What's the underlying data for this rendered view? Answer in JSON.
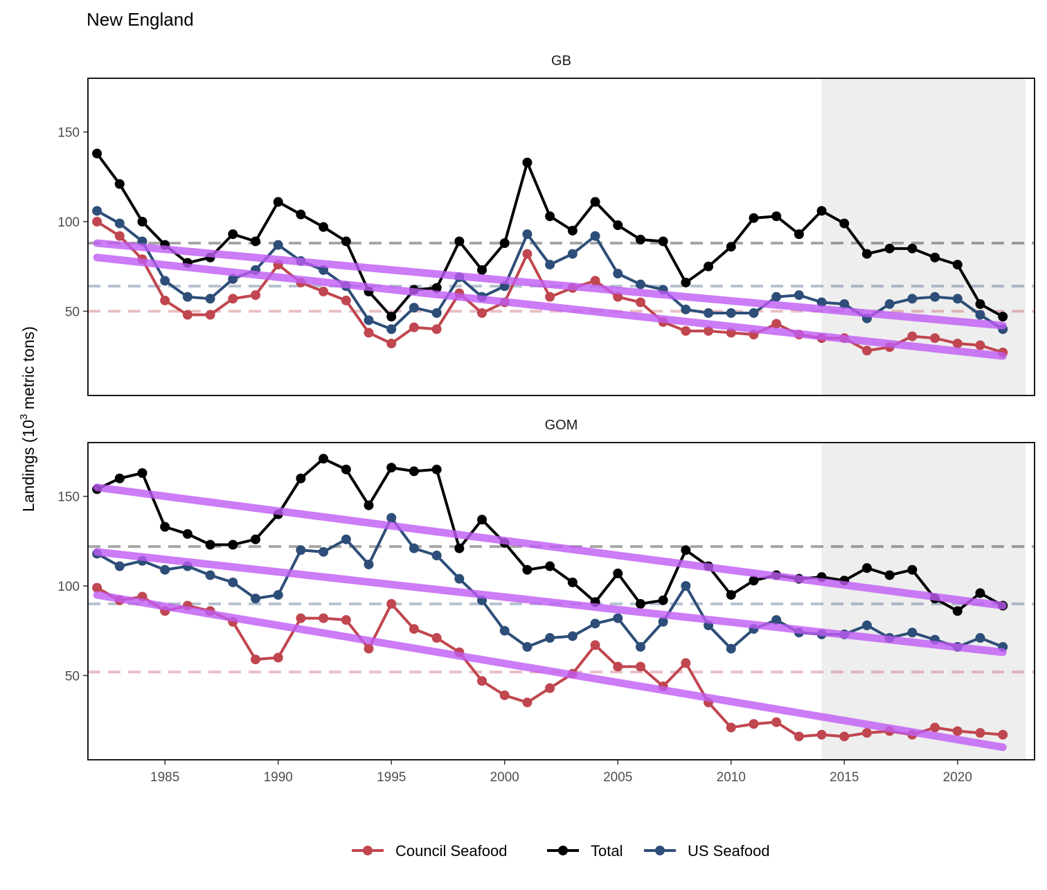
{
  "chart_data": {
    "type": "line",
    "title": "New England",
    "ylabel": "Landings (10³ metric tons)",
    "ylabel_parts": {
      "base": "Landings (10",
      "sup": "3",
      "rest": " metric tons)"
    },
    "xlim": [
      1981.6,
      2023.4
    ],
    "ylim": [
      3,
      180
    ],
    "x_ticks": [
      1985,
      1990,
      1995,
      2000,
      2005,
      2010,
      2015,
      2020
    ],
    "y_ticks": [
      50,
      100,
      150
    ],
    "shaded_period": [
      2014,
      2023
    ],
    "colors": {
      "Council Seafood": "#c0464f",
      "Total": "#000000",
      "US Seafood": "#2d4e78",
      "trend": "#bf5bf4",
      "shade": "#eeeeee"
    },
    "legend": {
      "position": "bottom",
      "entries": [
        "Council Seafood",
        "Total",
        "US Seafood"
      ]
    },
    "years": [
      1982,
      1983,
      1984,
      1985,
      1986,
      1987,
      1988,
      1989,
      1990,
      1991,
      1992,
      1993,
      1994,
      1995,
      1996,
      1997,
      1998,
      1999,
      2000,
      2001,
      2002,
      2003,
      2004,
      2005,
      2006,
      2007,
      2008,
      2009,
      2010,
      2011,
      2012,
      2013,
      2014,
      2015,
      2016,
      2017,
      2018,
      2019,
      2020,
      2021,
      2022
    ],
    "panels": [
      {
        "name": "GB",
        "series": [
          {
            "name": "Total",
            "values": [
              138,
              121,
              100,
              87,
              77,
              80,
              93,
              89,
              111,
              104,
              97,
              89,
              61,
              47,
              62,
              63,
              89,
              73,
              88,
              133,
              103,
              95,
              111,
              98,
              90,
              89,
              66,
              75,
              86,
              102,
              103,
              93,
              106,
              99,
              82,
              85,
              85,
              80,
              76,
              54,
              47
            ]
          },
          {
            "name": "US Seafood",
            "values": [
              106,
              99,
              89,
              67,
              58,
              57,
              68,
              73,
              87,
              78,
              73,
              64,
              45,
              40,
              52,
              49,
              69,
              58,
              64,
              93,
              76,
              82,
              92,
              71,
              65,
              62,
              51,
              49,
              49,
              49,
              58,
              59,
              55,
              54,
              46,
              54,
              57,
              58,
              57,
              48,
              40
            ]
          },
          {
            "name": "Council Seafood",
            "values": [
              100,
              92,
              79,
              56,
              48,
              48,
              57,
              59,
              76,
              66,
              61,
              56,
              38,
              32,
              41,
              40,
              60,
              49,
              55,
              82,
              58,
              63,
              67,
              58,
              55,
              44,
              39,
              39,
              38,
              37,
              43,
              37,
              35,
              35,
              28,
              30,
              36,
              35,
              32,
              31,
              27
            ]
          }
        ],
        "means": {
          "Total": 88,
          "US Seafood": 64,
          "Council Seafood": 50
        },
        "trends": [
          {
            "series": "Total",
            "start": [
              1982,
              88
            ],
            "end": [
              2022,
              42
            ]
          },
          {
            "series": "Council Seafood",
            "start": [
              1982,
              80
            ],
            "end": [
              2022,
              25
            ]
          }
        ]
      },
      {
        "name": "GOM",
        "series": [
          {
            "name": "Total",
            "values": [
              154,
              160,
              163,
              133,
              129,
              123,
              123,
              126,
              140,
              160,
              171,
              165,
              145,
              166,
              164,
              165,
              121,
              137,
              124,
              109,
              111,
              102,
              91,
              107,
              90,
              92,
              120,
              111,
              95,
              103,
              106,
              104,
              105,
              103,
              110,
              106,
              109,
              93,
              86,
              96,
              89
            ]
          },
          {
            "name": "US Seafood",
            "values": [
              118,
              111,
              114,
              109,
              111,
              106,
              102,
              93,
              95,
              120,
              119,
              126,
              112,
              138,
              121,
              117,
              104,
              92,
              75,
              66,
              71,
              72,
              79,
              82,
              66,
              80,
              100,
              78,
              65,
              76,
              81,
              74,
              73,
              73,
              78,
              71,
              74,
              70,
              66,
              71,
              66
            ]
          },
          {
            "name": "Council Seafood",
            "values": [
              99,
              92,
              94,
              86,
              89,
              86,
              80,
              59,
              60,
              82,
              82,
              81,
              65,
              90,
              76,
              71,
              63,
              47,
              39,
              35,
              43,
              51,
              67,
              55,
              55,
              44,
              57,
              35,
              21,
              23,
              24,
              16,
              17,
              16,
              18,
              19,
              17,
              21,
              19,
              18,
              17
            ]
          }
        ],
        "means": {
          "Total": 122,
          "US Seafood": 90,
          "Council Seafood": 52
        },
        "trends": [
          {
            "series": "Total",
            "start": [
              1982,
              155
            ],
            "end": [
              2022,
              89
            ]
          },
          {
            "series": "US Seafood",
            "start": [
              1982,
              119
            ],
            "end": [
              2022,
              63
            ]
          },
          {
            "series": "Council Seafood",
            "start": [
              1982,
              95
            ],
            "end": [
              2022,
              10
            ]
          }
        ]
      }
    ]
  }
}
